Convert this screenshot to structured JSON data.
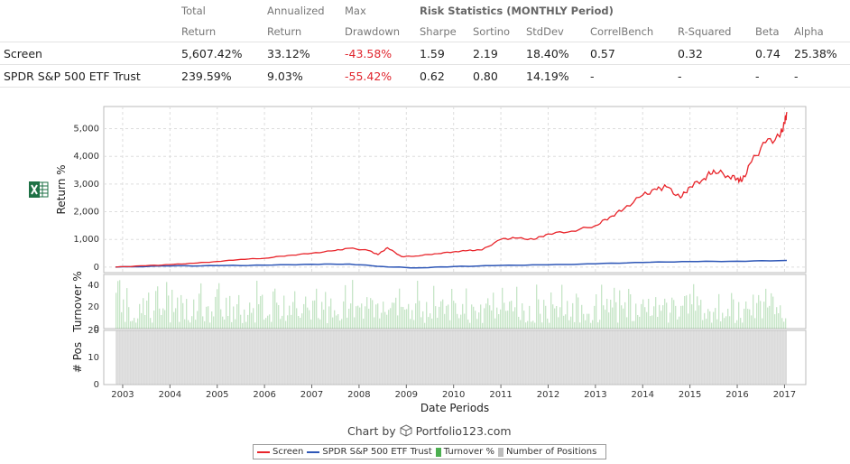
{
  "stats_table": {
    "headers_row1": [
      "",
      "Total",
      "Annualized",
      "Max",
      "Risk Statistics (MONTHLY Period)",
      "",
      "",
      "",
      "",
      "",
      ""
    ],
    "headers_row2": [
      "",
      "Return",
      "Return",
      "Drawdown",
      "Sharpe",
      "Sortino",
      "StdDev",
      "CorrelBench",
      "R-Squared",
      "Beta",
      "Alpha"
    ],
    "rows": [
      [
        "Screen",
        "5,607.42%",
        "33.12%",
        "-43.58%",
        "1.59",
        "2.19",
        "18.40%",
        "0.57",
        "0.32",
        "0.74",
        "25.38%"
      ],
      [
        "SPDR S&P 500 ETF Trust",
        "239.59%",
        "9.03%",
        "-55.42%",
        "0.62",
        "0.80",
        "14.19%",
        "-",
        "-",
        "-",
        "-"
      ]
    ]
  },
  "icons": {
    "excel": "excel-export-icon",
    "cube": "cube-icon"
  },
  "colors": {
    "screen": "#e8242a",
    "spdr": "#2e57b7",
    "turnover": "#4caf50",
    "positions": "#bdbdbd"
  },
  "credit": {
    "prefix": "Chart by",
    "brand": "Portfolio123.com"
  },
  "legend": {
    "screen": "Screen",
    "spdr": "SPDR S&P 500 ETF Trust",
    "turnover": "Turnover %",
    "positions": "Number of Positions"
  },
  "chart_data": {
    "type": "line",
    "xlabel": "Date Periods",
    "x_ticks": [
      "2003",
      "2004",
      "2005",
      "2006",
      "2007",
      "2008",
      "2009",
      "2010",
      "2011",
      "2012",
      "2013",
      "2014",
      "2015",
      "2016",
      "2017"
    ],
    "panels": [
      {
        "name": "return",
        "ylabel": "Return %",
        "ylim": [
          -200,
          5800
        ],
        "y_ticks": [
          "0",
          "1,000",
          "2,000",
          "3,000",
          "4,000",
          "5,000"
        ],
        "series": [
          {
            "name": "Screen",
            "x": [
              2002.85,
              2003.5,
              2004.0,
              2004.5,
              2005.0,
              2005.5,
              2006.0,
              2006.5,
              2007.0,
              2007.5,
              2007.8,
              2008.2,
              2008.4,
              2008.6,
              2008.9,
              2009.2,
              2009.6,
              2010.0,
              2010.3,
              2010.6,
              2011.0,
              2011.3,
              2011.7,
              2012.0,
              2012.5,
              2013.0,
              2013.3,
              2013.6,
              2014.0,
              2014.3,
              2014.5,
              2014.8,
              2015.0,
              2015.3,
              2015.5,
              2015.8,
              2016.0,
              2016.1,
              2016.3,
              2016.6,
              2016.9,
              2017.0,
              2017.05
            ],
            "y": [
              0,
              50,
              90,
              140,
              200,
              280,
              320,
              420,
              500,
              600,
              680,
              600,
              450,
              700,
              380,
              400,
              480,
              550,
              600,
              620,
              1000,
              1050,
              1000,
              1200,
              1300,
              1500,
              1800,
              2100,
              2600,
              2800,
              2900,
              2500,
              2900,
              3200,
              3500,
              3300,
              3200,
              3100,
              3800,
              4500,
              4700,
              5200,
              5600
            ]
          },
          {
            "name": "SPDR S&P 500 ETF Trust",
            "x": [
              2002.85,
              2004.0,
              2005.0,
              2006.0,
              2007.0,
              2007.8,
              2008.5,
              2009.2,
              2010.0,
              2011.0,
              2012.0,
              2013.0,
              2014.0,
              2015.0,
              2016.0,
              2017.05
            ],
            "y": [
              0,
              40,
              50,
              70,
              100,
              110,
              20,
              -30,
              20,
              60,
              80,
              120,
              170,
              200,
              210,
              240
            ]
          }
        ]
      },
      {
        "name": "turnover",
        "ylabel": "Turnover %",
        "ylim": [
          0,
          50
        ],
        "y_ticks": [
          "0",
          "20",
          "40"
        ],
        "series": [
          {
            "name": "Turnover %",
            "type": "bar",
            "typical_range": [
              5,
              40
            ],
            "max": 45
          }
        ]
      },
      {
        "name": "positions",
        "ylabel": "# Pos",
        "ylim": [
          0,
          20
        ],
        "y_ticks": [
          "0",
          "10",
          "20"
        ],
        "series": [
          {
            "name": "Number of Positions",
            "type": "bar",
            "value": 20,
            "x_range": [
              2002.85,
              2017.05
            ]
          }
        ]
      }
    ]
  }
}
